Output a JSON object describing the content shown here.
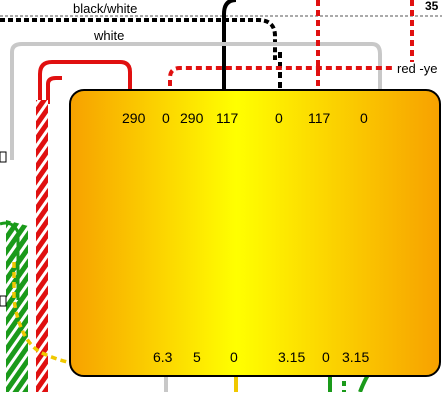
{
  "wire_labels": {
    "top": "black/white",
    "second": "white",
    "red_yellow": "red -ye",
    "corner": "35"
  },
  "component": {
    "top_pins": [
      "290",
      "0",
      "290",
      "117",
      "0",
      "117",
      "0"
    ],
    "bottom_pins": [
      "6.3",
      "5",
      "0",
      "3.15",
      "0",
      "3.15"
    ]
  },
  "colors": {
    "body_edge": "#f5a000",
    "body_center": "#ffff00",
    "red": "#e01010",
    "green": "#1a9a1a",
    "gray": "#c8c8c8",
    "black": "#000000",
    "yellow": "#f0c800"
  }
}
